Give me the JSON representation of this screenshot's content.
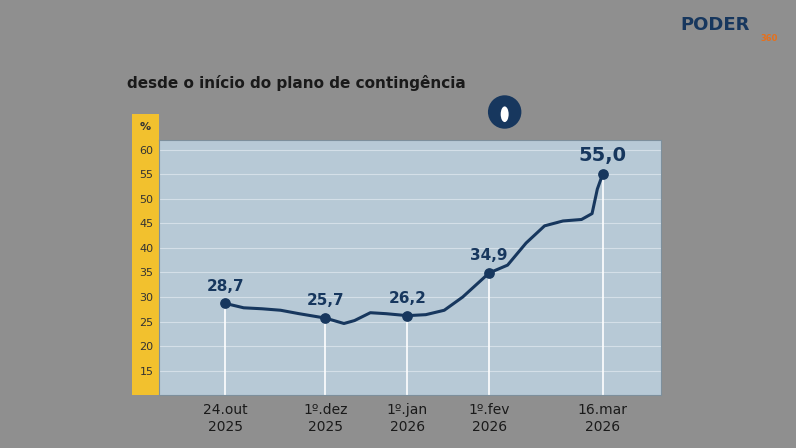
{
  "chart_data": {
    "type": "line",
    "title": "desde o início do plano de contingência",
    "y_label": "%",
    "logo": "PODER",
    "logo_suffix": "360",
    "x": [
      "2025-10-24",
      "2025-10-31",
      "2025-11-07",
      "2025-11-14",
      "2025-11-21",
      "2025-12-01",
      "2025-12-08",
      "2025-12-12",
      "2025-12-18",
      "2025-12-24",
      "2026-01-01",
      "2026-01-08",
      "2026-01-15",
      "2026-01-22",
      "2026-02-01",
      "2026-02-08",
      "2026-02-15",
      "2026-02-22",
      "2026-03-01",
      "2026-03-08",
      "2026-03-12",
      "2026-03-14",
      "2026-03-16"
    ],
    "values": [
      28.7,
      27.8,
      27.6,
      27.3,
      26.6,
      25.7,
      24.6,
      25.2,
      26.8,
      26.6,
      26.2,
      26.4,
      27.3,
      30.0,
      34.9,
      36.5,
      41.0,
      44.5,
      45.5,
      45.8,
      47.0,
      52.0,
      55.0
    ],
    "value_labels": [
      "28,7",
      null,
      null,
      null,
      null,
      "25,7",
      null,
      null,
      null,
      null,
      "26,2",
      null,
      null,
      null,
      "34,9",
      null,
      null,
      null,
      null,
      null,
      null,
      null,
      "55,0"
    ],
    "data_labels": true,
    "color": "#17375e",
    "marker": "o",
    "line_style": "solid",
    "xlim": [
      "2025-09-29",
      "2026-04-07"
    ],
    "xticks": [
      {
        "value": "2025-10-24",
        "label": "24.out\n2025"
      },
      {
        "value": "2025-12-01",
        "label": "1º.dez\n2025"
      },
      {
        "value": "2026-01-01",
        "label": "1º.jan\n2026"
      },
      {
        "value": "2026-02-01",
        "label": "1º.fev\n2026"
      },
      {
        "value": "2026-03-16",
        "label": "16.mar\n2026"
      }
    ],
    "ylim": [
      10,
      62
    ],
    "yticks": [
      15,
      20,
      25,
      30,
      35,
      40,
      45,
      50,
      55,
      60
    ],
    "grid": true
  }
}
